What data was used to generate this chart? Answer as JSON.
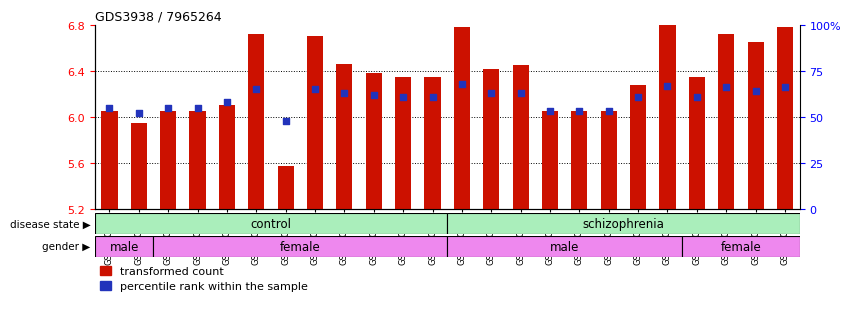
{
  "title": "GDS3938 / 7965264",
  "samples": [
    "GSM630785",
    "GSM630786",
    "GSM630787",
    "GSM630788",
    "GSM630789",
    "GSM630790",
    "GSM630791",
    "GSM630792",
    "GSM630793",
    "GSM630794",
    "GSM630795",
    "GSM630796",
    "GSM630797",
    "GSM630798",
    "GSM630799",
    "GSM630803",
    "GSM630804",
    "GSM630805",
    "GSM630806",
    "GSM630807",
    "GSM630808",
    "GSM630800",
    "GSM630801",
    "GSM630802"
  ],
  "transformed_count": [
    6.05,
    5.95,
    6.05,
    6.05,
    6.1,
    6.72,
    5.57,
    6.7,
    6.46,
    6.38,
    6.35,
    6.35,
    6.78,
    6.42,
    6.45,
    6.05,
    6.05,
    6.05,
    6.28,
    6.82,
    6.35,
    6.72,
    6.65,
    6.78
  ],
  "percentile_rank": [
    55,
    52,
    55,
    55,
    58,
    65,
    48,
    65,
    63,
    62,
    61,
    61,
    68,
    63,
    63,
    53,
    53,
    53,
    61,
    67,
    61,
    66,
    64,
    66
  ],
  "ylim_left": [
    5.2,
    6.8
  ],
  "ylim_right": [
    0,
    100
  ],
  "yticks_left": [
    5.2,
    5.6,
    6.0,
    6.4,
    6.8
  ],
  "yticks_right": [
    0,
    25,
    50,
    75,
    100
  ],
  "bar_color": "#CC1100",
  "dot_color": "#2233BB",
  "background_color": "#ffffff",
  "disease_state_labels": [
    "control",
    "schizophrenia"
  ],
  "disease_state_ranges": [
    [
      0,
      12
    ],
    [
      12,
      24
    ]
  ],
  "disease_state_color": "#AAEEBB",
  "gender_labels": [
    "male",
    "female",
    "male",
    "female"
  ],
  "gender_ranges": [
    [
      0,
      2
    ],
    [
      2,
      12
    ],
    [
      12,
      20
    ],
    [
      20,
      24
    ]
  ],
  "gender_color": "#EE88EE",
  "legend_items": [
    "transformed count",
    "percentile rank within the sample"
  ],
  "bar_width": 0.55
}
